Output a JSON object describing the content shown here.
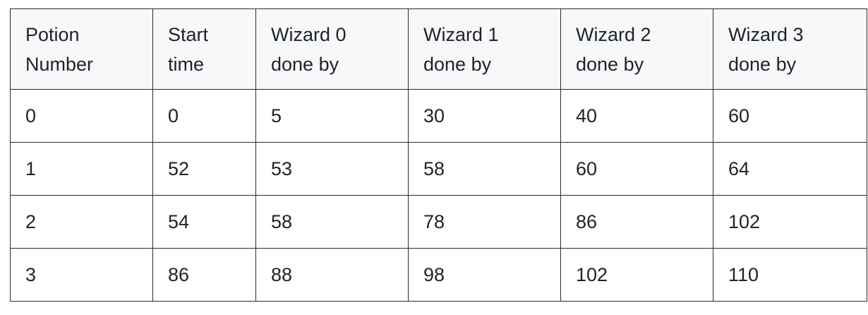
{
  "table": {
    "headers": [
      [
        "Potion",
        "Number"
      ],
      [
        "Start",
        "time"
      ],
      [
        "Wizard 0",
        "done by"
      ],
      [
        "Wizard 1",
        "done by"
      ],
      [
        "Wizard 2",
        "done by"
      ],
      [
        "Wizard 3",
        "done by"
      ]
    ],
    "rows": [
      [
        "0",
        "0",
        "5",
        "30",
        "40",
        "60"
      ],
      [
        "1",
        "52",
        "53",
        "58",
        "60",
        "64"
      ],
      [
        "2",
        "54",
        "58",
        "78",
        "86",
        "102"
      ],
      [
        "3",
        "86",
        "88",
        "98",
        "102",
        "110"
      ]
    ]
  }
}
